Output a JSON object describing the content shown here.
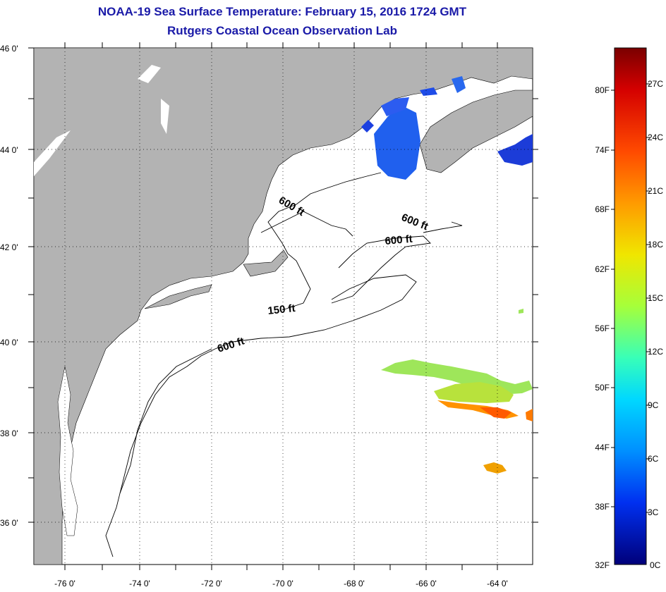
{
  "title": "NOAA-19 Sea Surface Temperature:  February 15, 2016 1724 GMT",
  "subtitle": "Rutgers Coastal Ocean Observation Lab",
  "map": {
    "lat_labels": [
      "46 0'",
      "44 0'",
      "42 0'",
      "40 0'",
      "38 0'",
      "36 0'"
    ],
    "lon_labels": [
      "-76 0'",
      "-74 0'",
      "-72 0'",
      "-70 0'",
      "-68 0'",
      "-66 0'",
      "-64 0'"
    ],
    "land_color": "#b3b3b3",
    "water_color": "#ffffff",
    "contour_labels": [
      "600 ft",
      "600 ft",
      "600 ft",
      "150 ft",
      "600 ft"
    ]
  },
  "colorbar": {
    "fahrenheit_labels": [
      "80F",
      "74F",
      "68F",
      "62F",
      "56F",
      "50F",
      "44F",
      "38F",
      "32F"
    ],
    "celsius_labels": [
      "27C",
      "24C",
      "21C",
      "18C",
      "15C",
      "12C",
      "9C",
      "6C",
      "3C",
      "0C"
    ],
    "colors": [
      "#7a0000",
      "#c80000",
      "#ff3c00",
      "#ff9a00",
      "#ffe600",
      "#b4ff2a",
      "#3cffb4",
      "#00c8ff",
      "#0050ff",
      "#0000b4",
      "#00007a"
    ]
  }
}
